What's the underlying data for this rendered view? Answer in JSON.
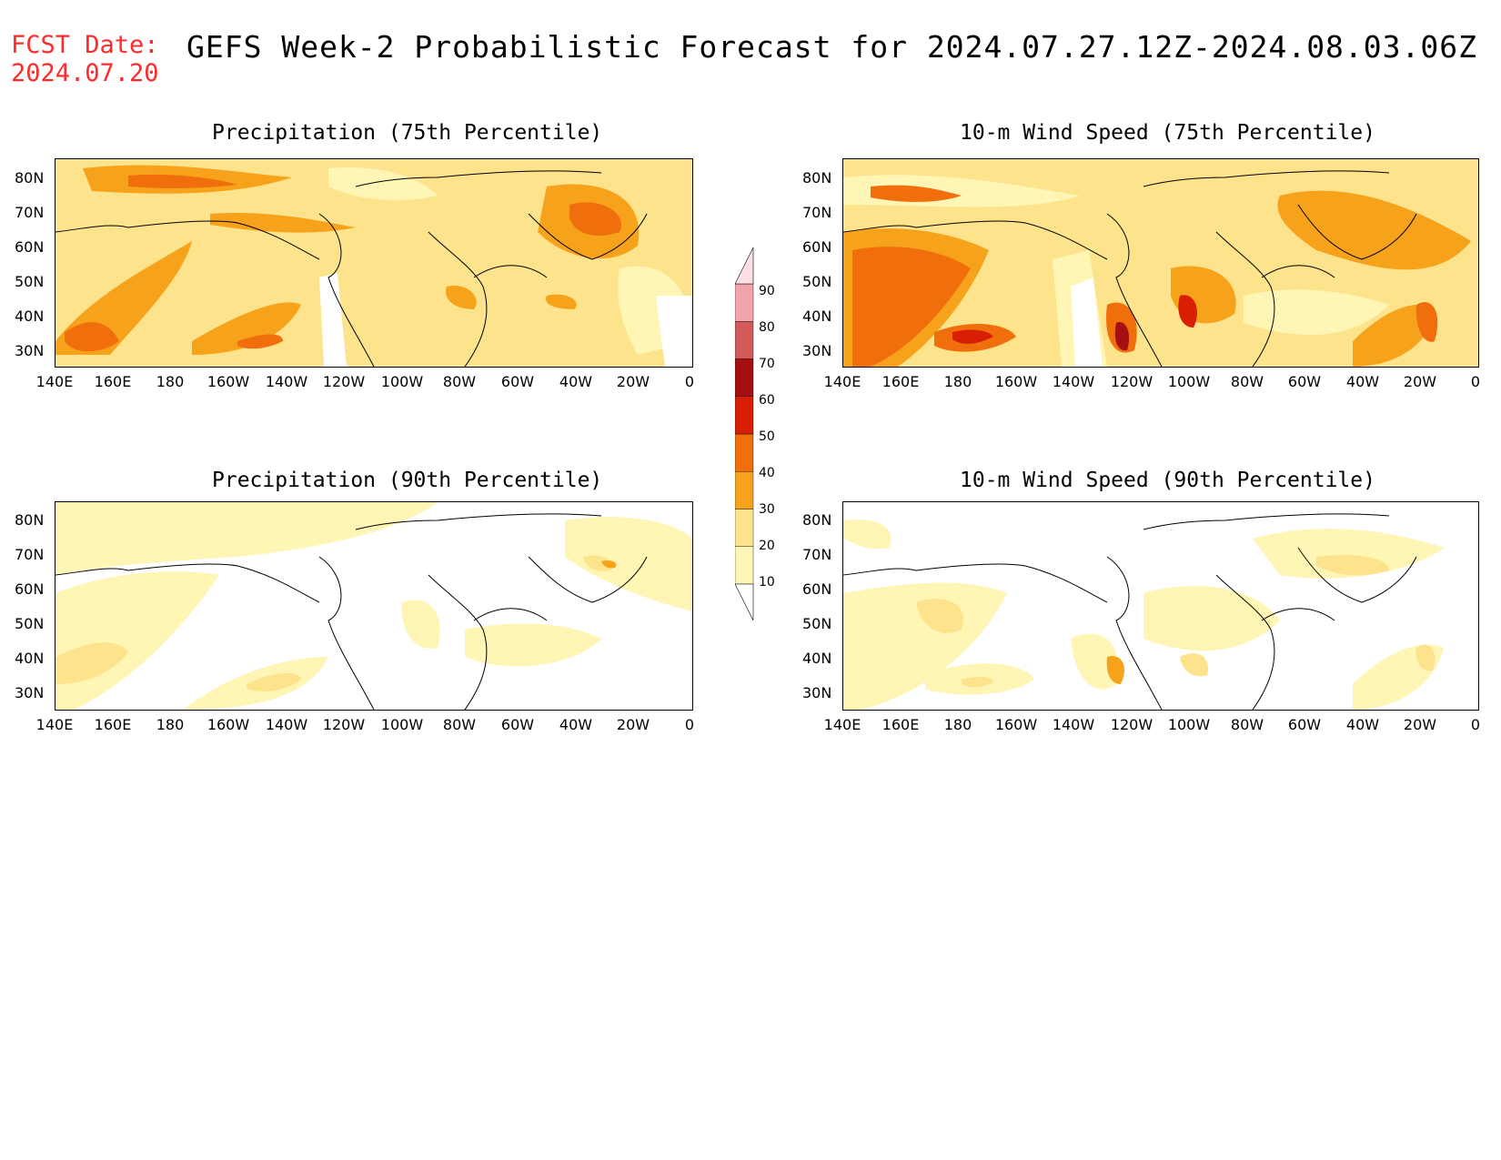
{
  "header": {
    "fcst_label": "FCST Date:",
    "fcst_date": "2024.07.20",
    "title": "GEFS Week-2 Probabilistic Forecast for 2024.07.27.12Z-2024.08.03.06Z"
  },
  "panels": [
    {
      "id": "precip75",
      "title": "Precipitation (75th Percentile)"
    },
    {
      "id": "wind75",
      "title": "10-m Wind Speed (75th Percentile)"
    },
    {
      "id": "precip90",
      "title": "Precipitation (90th Percentile)"
    },
    {
      "id": "wind90",
      "title": "10-m Wind Speed (90th Percentile)"
    }
  ],
  "axes": {
    "lat_labels": [
      "80N",
      "70N",
      "60N",
      "50N",
      "40N",
      "30N"
    ],
    "lon_labels": [
      "140E",
      "160E",
      "180",
      "160W",
      "140W",
      "120W",
      "100W",
      "80W",
      "60W",
      "40W",
      "20W",
      "0"
    ]
  },
  "colorbar": {
    "levels": [
      "10",
      "20",
      "30",
      "40",
      "50",
      "60",
      "70",
      "80",
      "90"
    ],
    "colors": [
      "#fff5b4",
      "#fde38c",
      "#f7a21b",
      "#f06f0c",
      "#d81e05",
      "#a50f0f",
      "#d45a5a",
      "#f0a3a8",
      "#fde0e3"
    ]
  }
}
